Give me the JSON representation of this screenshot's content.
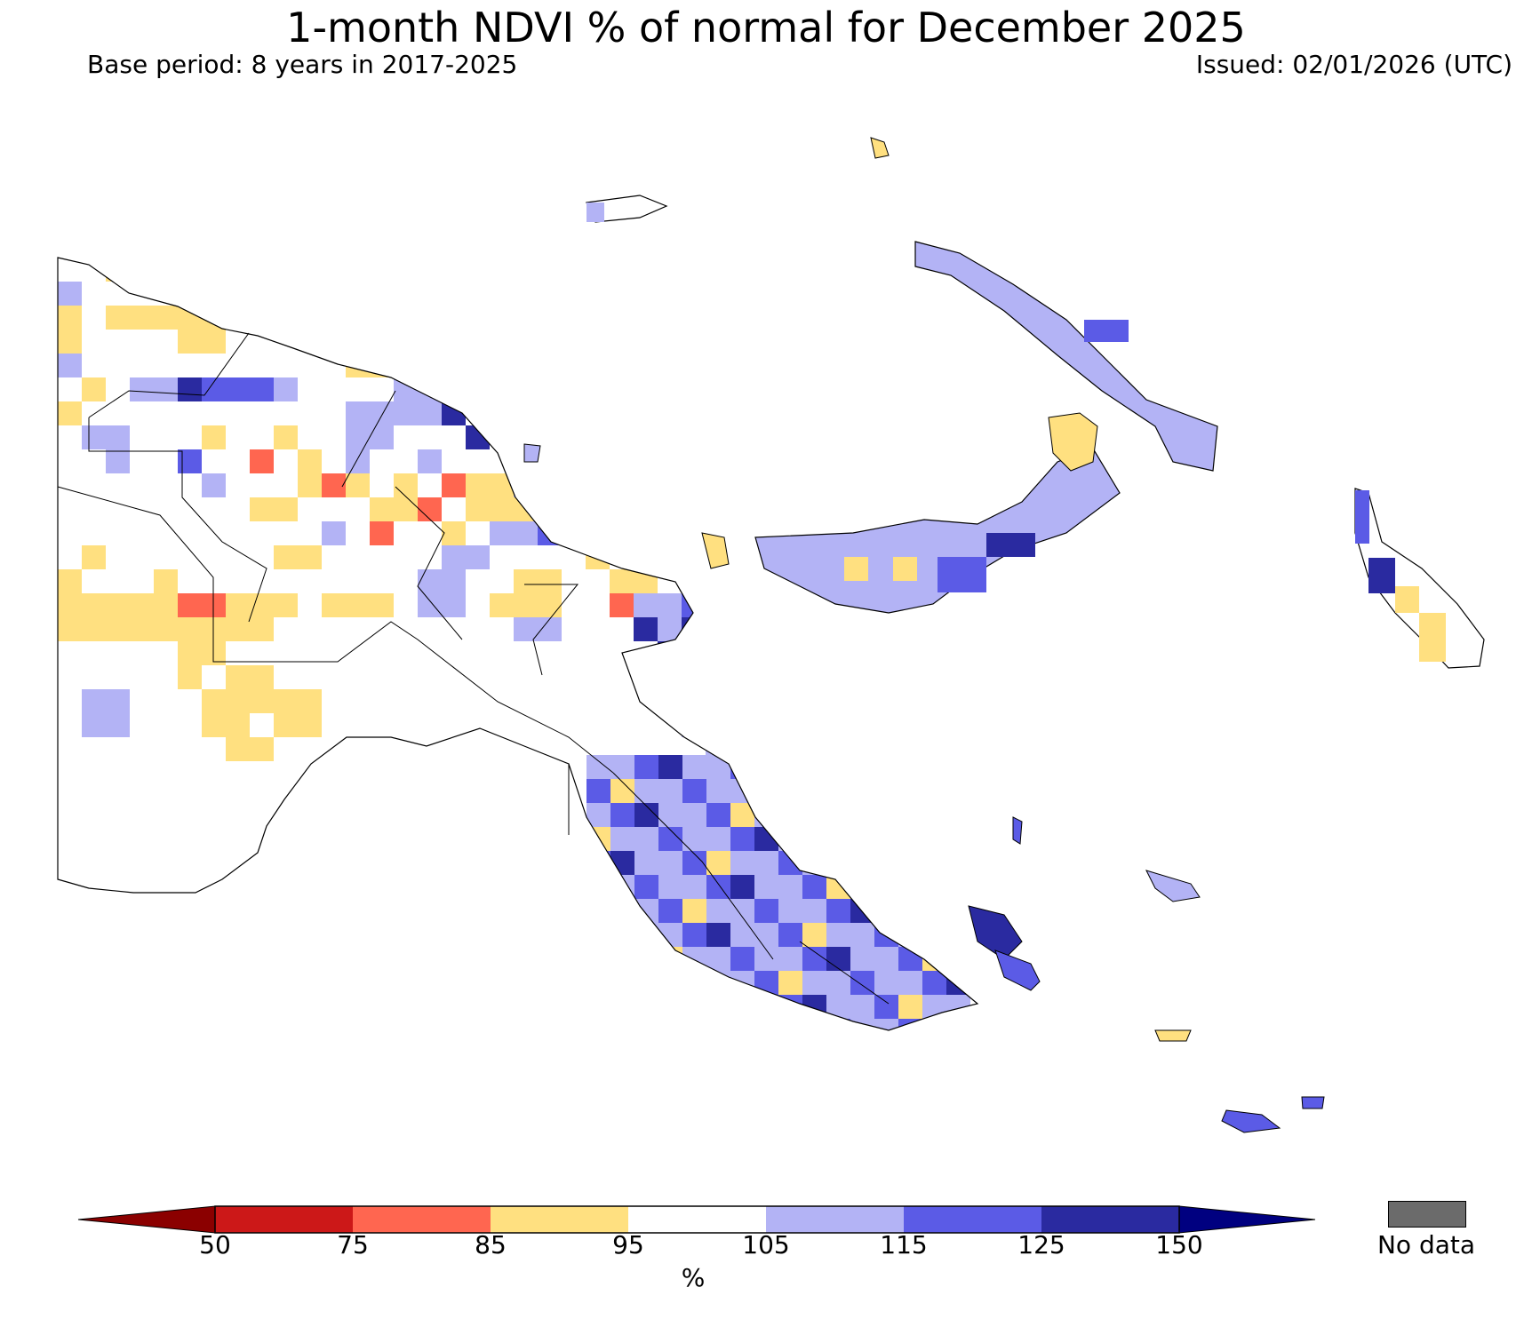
{
  "title": "1-month NDVI % of normal for December 2025",
  "base_period": "Base period: 8 years in 2017-2025",
  "issued": "Issued: 02/01/2026 (UTC)",
  "colorbar": {
    "ticks": [
      "50",
      "75",
      "85",
      "95",
      "105",
      "115",
      "125",
      "150"
    ],
    "unit": "%",
    "colors": {
      "under": "#8b0000",
      "c50_75": "#cc1818",
      "c75_85": "#ff6650",
      "c85_95": "#ffe080",
      "c95_105": "#ffffff",
      "c105_115": "#b3b3f5",
      "c115_125": "#5b5be6",
      "c125_150": "#2a2aa0",
      "over": "#000080"
    }
  },
  "nodata": {
    "label": "No data",
    "color": "#6b6b6b"
  }
}
